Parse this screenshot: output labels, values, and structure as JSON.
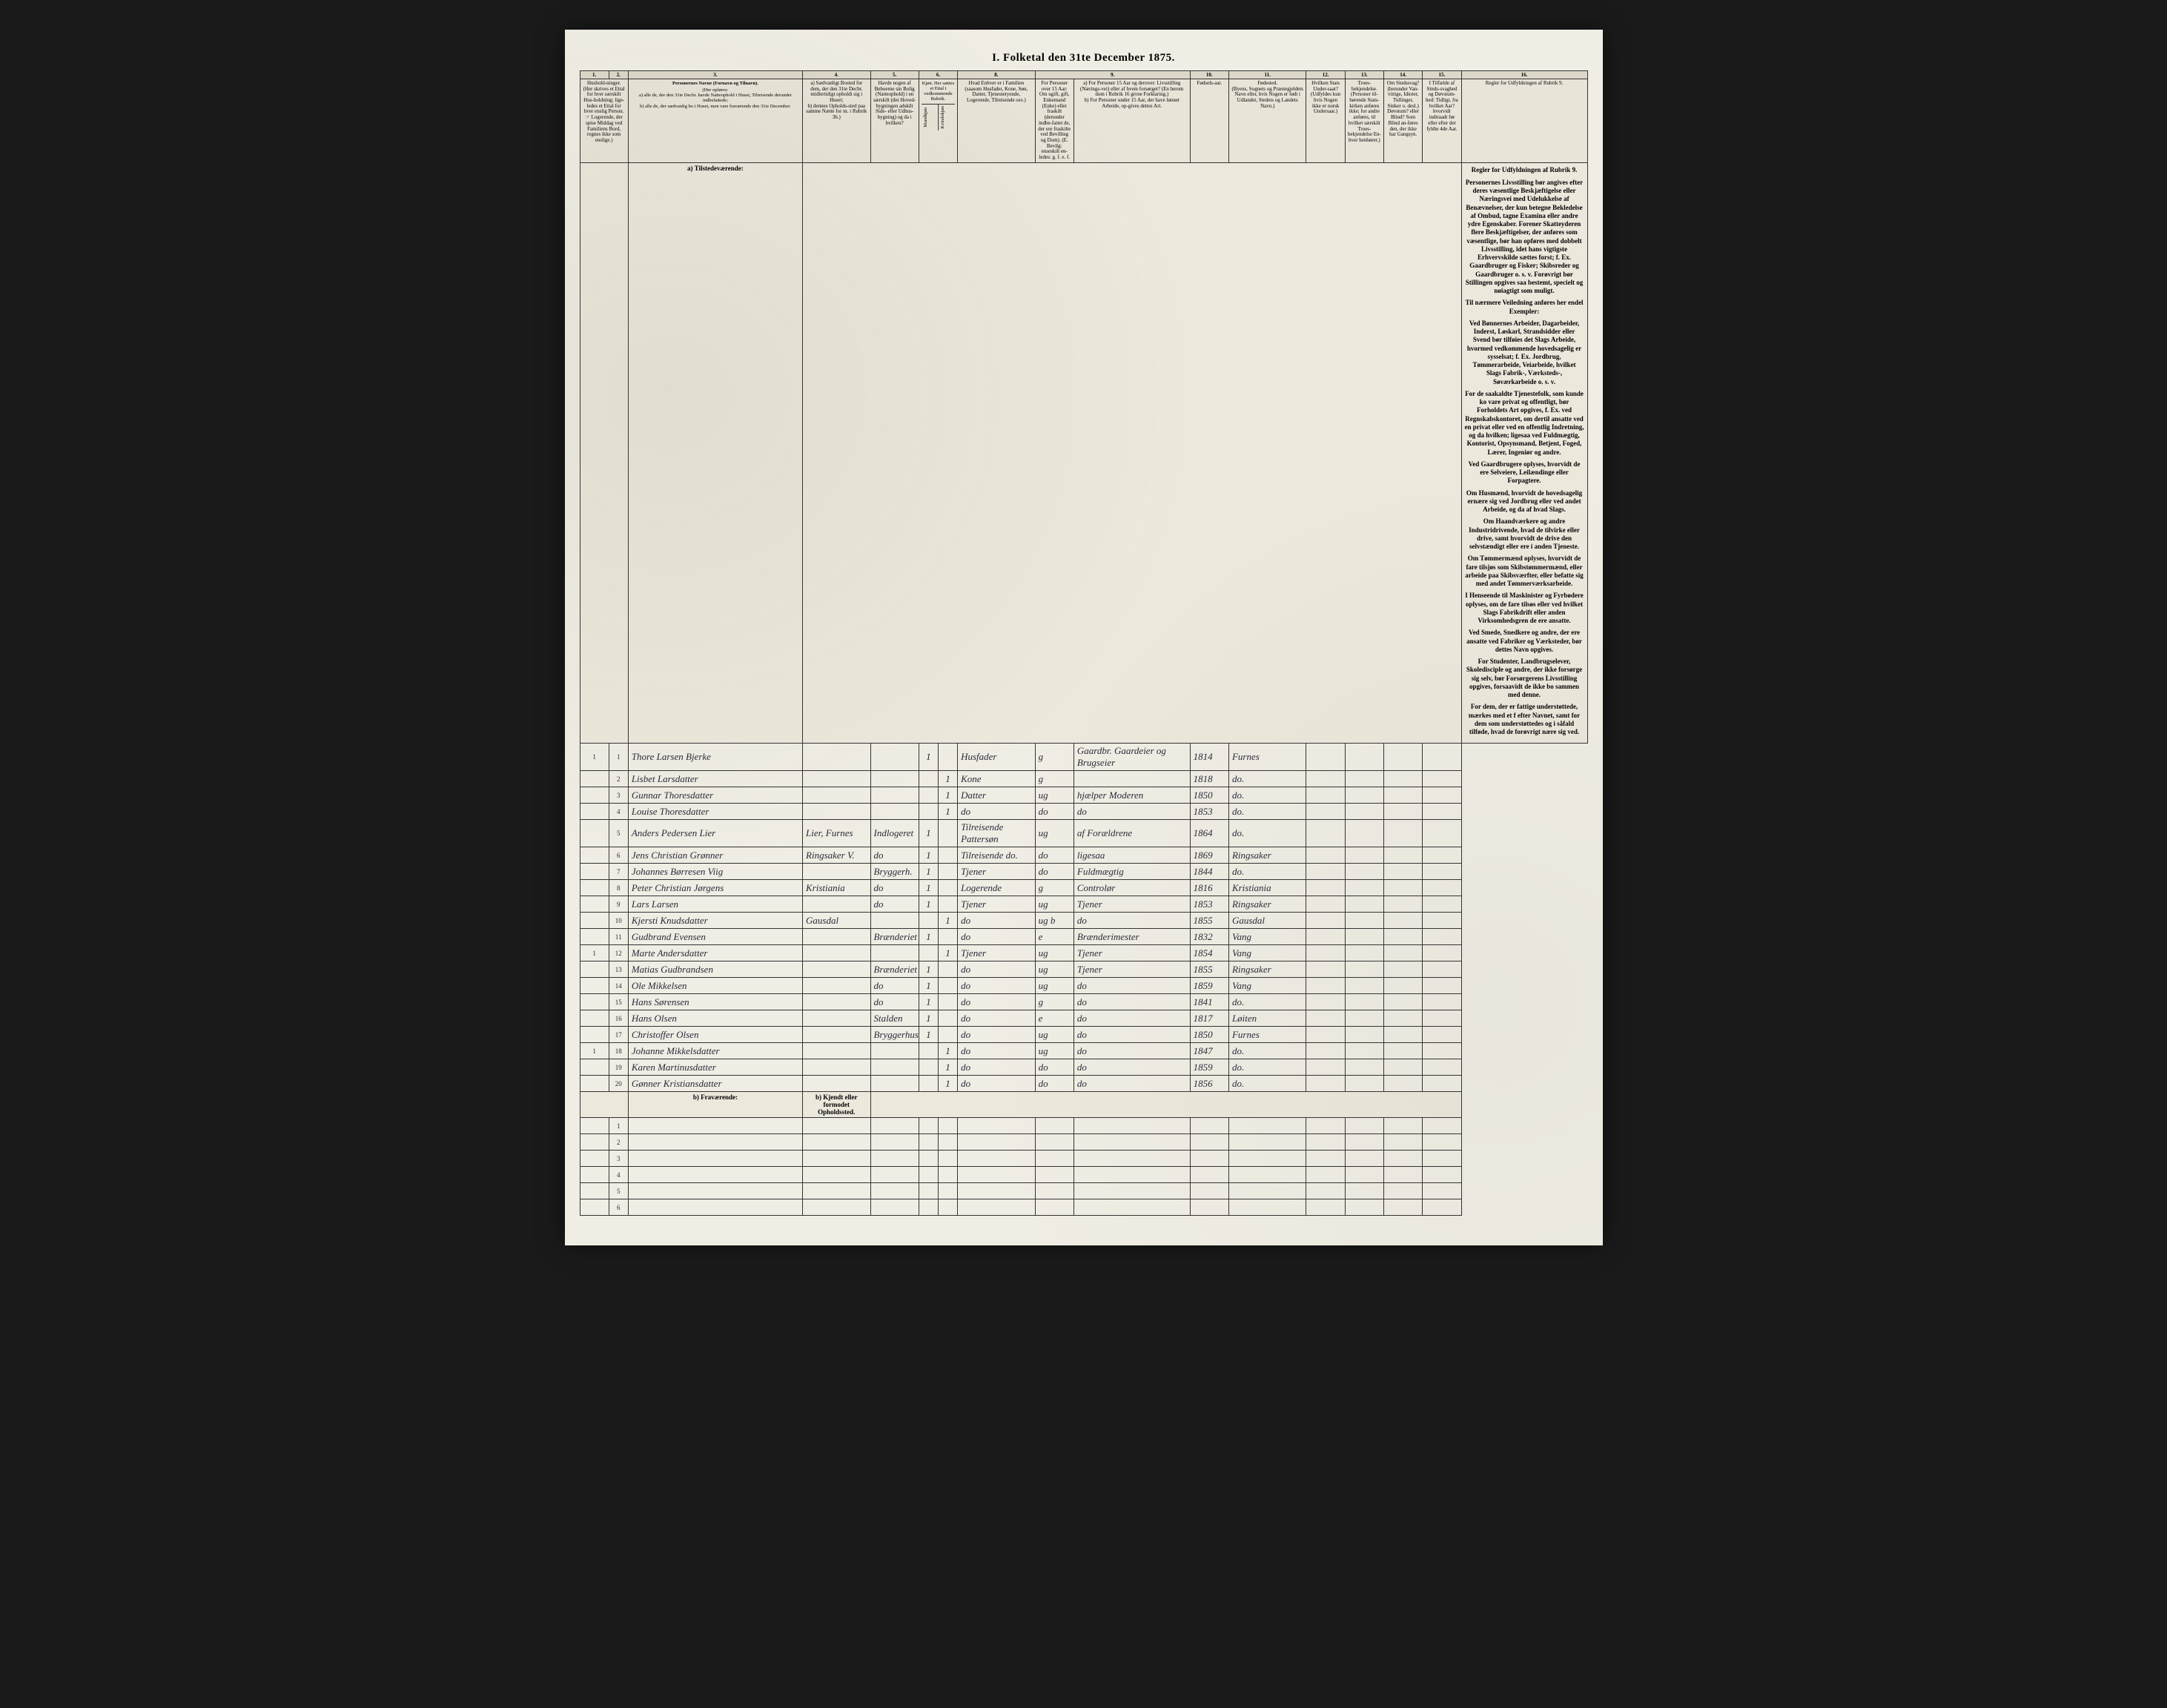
{
  "title": "I. Folketal den 31te December 1875.",
  "column_numbers": [
    "1.",
    "2.",
    "3.",
    "4.",
    "5.",
    "6.",
    "7.",
    "8.",
    "9.",
    "10.",
    "11.",
    "12.",
    "13.",
    "14.",
    "15.",
    "16."
  ],
  "headers": {
    "c1": "Hushold-ninger. (Her skrives et Ettal for hver særskilt Hus-holdning; lige-ledes et Ettal for hver enslig Person. ☞ Logerende, der spise Middag ved Familiens Bord, regnes ikke som enslige.)",
    "c3_title": "Personernes Navne (Fornavn og Tilnavn).",
    "c3_sub": "(Her opføres:\na) alle de, der den 31te Decbr. havde Natteophold i Huset, Tilreisende derunder indbefattede;\nb) alle de, der sædvanlig bo i Huset, men vare fraværende den 31te December.",
    "c4": "a) Sædvanligt Bosted for dem, der den 31te Decbr. midlertidigt opholdt sig i Huset;\nb) dennes Opholds-sted paa samme Nætte for m. i Rubrik 3b.)",
    "c5": "Havde nogen af Beboerne sin Bolig (Natteophold) i en særskilt (det Hoved-bygningen adskilt Side- eller Udhus-bygning) og da i hvilken?",
    "c67": "Kjøn. Her sættes et Ettal i vedkommende Rubrik.",
    "c6": "Mandkjøn",
    "c7": "Kvindekjøn",
    "c8": "Hvad Enhver er i Familien (saasom Husfader, Kone, Søn, Datter, Tjenestetyende, Logerende, Tilreisende osv.)",
    "c9a": "For Personer over 15 Aar: Om ugift, gift, Enkemand (Enke) eller fraskilt (derunder indbe-fattet de, der ere fraskilte ved Bevilling og Dom). (E. Bevilg: enseskilt en-ledes: g. f. e. f.",
    "c9b": "a) For Personer 15 Aar og derover: Livsstilling (Nærings-vei) eller af hvem forsørget? (En herom dom i Rubrik 16 givne Forklaring.)\nb) For Personer under 15 Aar, der have lønnet Arbeide, op-gives dettes Art.",
    "c10": "Fødsels-aar.",
    "c11": "Fødested.\n(Byens, Sognets og Præstegjeldets Navn eller, hvis Nogen er født i Udlandet, Stedets og Landets Navn.)",
    "c12": "Hvilken Stats Under-saat?\n(Udfyldes kun hvis Nogen ikke er norsk Undersaat.)",
    "c13": "Troes-bekjendelse. (Personer til-hørende Stats-kirken anføres ikke; for andre anføres, til hvilket særskilt Troes-bekjendelse En-hver henhører.)",
    "c14": "Om Sindssvag? (herunder Van-vittige, Idioter, Tullinger, Sinker o. desl.) Døvstum? eller Blind? Som Blind an-føres den, der ikke har Gangsyn.",
    "c15": "I Tilfælde af Sinds-svaghed og Døvstum-hed: Tidligt, fra hvilket Aar? hvorvidt indtraadt før eller efter det fyldte 4de Aar.",
    "c16": "Regler for Udfyldningen af Rubrik 9."
  },
  "section_a": "a) Tilstedeværende:",
  "section_b": "b) Fraværende:",
  "section_b_col4": "b) Kjendt eller formodet Opholdssted.",
  "rows": [
    {
      "h": "1",
      "n": "1",
      "name": "Thore Larsen Bjerke",
      "c4": "",
      "c5": "",
      "c6": "1",
      "c7": "",
      "c8": "Husfader",
      "c9a": "g",
      "c9b": "Gaardbr. Gaardeier og Brugseier",
      "c10": "1814",
      "c11": "Furnes"
    },
    {
      "h": "",
      "n": "2",
      "name": "Lisbet Larsdatter",
      "c4": "",
      "c5": "",
      "c6": "",
      "c7": "1",
      "c8": "Kone",
      "c9a": "g",
      "c9b": "",
      "c10": "1818",
      "c11": "do."
    },
    {
      "h": "",
      "n": "3",
      "name": "Gunnar Thoresdatter",
      "c4": "",
      "c5": "",
      "c6": "",
      "c7": "1",
      "c8": "Datter",
      "c9a": "ug",
      "c9b": "hjælper Moderen",
      "c10": "1850",
      "c11": "do."
    },
    {
      "h": "",
      "n": "4",
      "name": "Louise Thoresdatter",
      "c4": "",
      "c5": "",
      "c6": "",
      "c7": "1",
      "c8": "do",
      "c9a": "do",
      "c9b": "do",
      "c10": "1853",
      "c11": "do."
    },
    {
      "h": "",
      "n": "5",
      "name": "Anders Pedersen Lier",
      "c4": "Lier, Furnes",
      "c5": "Indlogeret",
      "c6": "1",
      "c7": "",
      "c8": "Tilreisende Pattersøn",
      "c9a": "ug",
      "c9b": "af Forældrene",
      "c10": "1864",
      "c11": "do."
    },
    {
      "h": "",
      "n": "6",
      "name": "Jens Christian Grønner",
      "c4": "Ringsaker V.",
      "c5": "do",
      "c6": "1",
      "c7": "",
      "c8": "Tilreisende do.",
      "c9a": "do",
      "c9b": "ligesaa",
      "c10": "1869",
      "c11": "Ringsaker"
    },
    {
      "h": "",
      "n": "7",
      "name": "Johannes Børresen Viig",
      "c4": "",
      "c5": "Bryggerh.",
      "c6": "1",
      "c7": "",
      "c8": "Tjener",
      "c9a": "do",
      "c9b": "Fuldmægtig",
      "c10": "1844",
      "c11": "do."
    },
    {
      "h": "",
      "n": "8",
      "name": "Peter Christian Jørgens",
      "c4": "Kristiania",
      "c5": "do",
      "c6": "1",
      "c7": "",
      "c8": "Logerende",
      "c9a": "g",
      "c9b": "Controlør",
      "c10": "1816",
      "c11": "Kristiania"
    },
    {
      "h": "",
      "n": "9",
      "name": "Lars Larsen",
      "c4": "",
      "c5": "do",
      "c6": "1",
      "c7": "",
      "c8": "Tjener",
      "c9a": "ug",
      "c9b": "Tjener",
      "c10": "1853",
      "c11": "Ringsaker"
    },
    {
      "h": "",
      "n": "10",
      "name": "Kjersti Knudsdatter",
      "c4": "Gausdal",
      "c5": "",
      "c6": "",
      "c7": "1",
      "c8": "do",
      "c9a": "ug b",
      "c9b": "do",
      "c10": "1855",
      "c11": "Gausdal"
    },
    {
      "h": "",
      "n": "11",
      "name": "Gudbrand Evensen",
      "c4": "",
      "c5": "Brænderiet",
      "c6": "1",
      "c7": "",
      "c8": "do",
      "c9a": "e",
      "c9b": "Brænderimester",
      "c10": "1832",
      "c11": "Vang"
    },
    {
      "h": "1",
      "n": "12",
      "name": "Marte Andersdatter",
      "c4": "",
      "c5": "",
      "c6": "",
      "c7": "1",
      "c8": "Tjener",
      "c9a": "ug",
      "c9b": "Tjener",
      "c10": "1854",
      "c11": "Vang"
    },
    {
      "h": "",
      "n": "13",
      "name": "Matias Gudbrandsen",
      "c4": "",
      "c5": "Brænderiet",
      "c6": "1",
      "c7": "",
      "c8": "do",
      "c9a": "ug",
      "c9b": "Tjener",
      "c10": "1855",
      "c11": "Ringsaker"
    },
    {
      "h": "",
      "n": "14",
      "name": "Ole Mikkelsen",
      "c4": "",
      "c5": "do",
      "c6": "1",
      "c7": "",
      "c8": "do",
      "c9a": "ug",
      "c9b": "do",
      "c10": "1859",
      "c11": "Vang"
    },
    {
      "h": "",
      "n": "15",
      "name": "Hans Sørensen",
      "c4": "",
      "c5": "do",
      "c6": "1",
      "c7": "",
      "c8": "do",
      "c9a": "g",
      "c9b": "do",
      "c10": "1841",
      "c11": "do."
    },
    {
      "h": "",
      "n": "16",
      "name": "Hans Olsen",
      "c4": "",
      "c5": "Stalden",
      "c6": "1",
      "c7": "",
      "c8": "do",
      "c9a": "e",
      "c9b": "do",
      "c10": "1817",
      "c11": "Løiten"
    },
    {
      "h": "",
      "n": "17",
      "name": "Christoffer Olsen",
      "c4": "",
      "c5": "Bryggerhus",
      "c6": "1",
      "c7": "",
      "c8": "do",
      "c9a": "ug",
      "c9b": "do",
      "c10": "1850",
      "c11": "Furnes"
    },
    {
      "h": "1",
      "n": "18",
      "name": "Johanne Mikkelsdatter",
      "c4": "",
      "c5": "",
      "c6": "",
      "c7": "1",
      "c8": "do",
      "c9a": "ug",
      "c9b": "do",
      "c10": "1847",
      "c11": "do."
    },
    {
      "h": "",
      "n": "19",
      "name": "Karen Martinusdatter",
      "c4": "",
      "c5": "",
      "c6": "",
      "c7": "1",
      "c8": "do",
      "c9a": "do",
      "c9b": "do",
      "c10": "1859",
      "c11": "do."
    },
    {
      "h": "",
      "n": "20",
      "name": "Gønner Kristiansdatter",
      "c4": "",
      "c5": "",
      "c6": "",
      "c7": "1",
      "c8": "do",
      "c9a": "do",
      "c9b": "do",
      "c10": "1856",
      "c11": "do."
    }
  ],
  "sidebar": {
    "title": "Regler for Udfyldningen af Rubrik 9.",
    "p1": "Personernes Livsstilling bør angives efter deres væsentlige Beskjæftigelse eller Næringsvei med Udelukkelse af Benævnelser, der kun betegne Bekledelse af Ombud, tagne Examina eller andre ydre Egenskaber. Forener Skatteyderen flere Beskjæftigelser, der anføres som væsentlige, bør han opføres med dobbelt Livsstilling, idet hans vigtigste Erhvervskilde sættes forst; f. Ex. Gaardbruger og Fisker; Skibsreder og Gaardbruger o. s. v. Forøvrigt bør Stillingen opgives saa bestemt, specielt og nøiagtigt som muligt.",
    "p2": "Til nærmere Veiledning anføres her endel Exempler:",
    "p3": "Ved Bønnernes Arbeider, Dagarbeider, Inderst, Løskarl, Strandsidder eller Svend bør tilføies det Slags Arbeide, hvormed vedkommende hovedsagelig er sysselsat; f. Ex. Jordbrug, Tømmerarbeide, Veiarbeide, hvilket Slags Fabrik-, Værksteds-, Søværkarbeide o. s. v.",
    "p4": "For de saakaldte Tjenestefolk, som kunde ko vare privat og offentligt, bør Forholdets Art opgives, f. Ex. ved Regnskabskontoret, om dertil ansatte ved en privat eller ved en offentlig Indretning, og da hvilken; ligesaa ved Fuldmægtig, Kontorist, Opsynsmand, Betjent, Foged, Lærer, Ingeniør og andre.",
    "p5": "Ved Gaardbrugere oplyses, hvorvidt de ere Selveiere, Leilændinge eller Forpagtere.",
    "p6": "Om Husmænd, hvorvidt de hovedsagelig ernære sig ved Jordbrug eller ved andet Arbeide, og da af hvad Slags.",
    "p7": "Om Haandværkere og andre Industridrivende, hvad de tilvirke eller drive, samt hvorvidt de drive den selvstændigt eller ere i anden Tjeneste.",
    "p8": "Om Tømmermænd oplyses, hvorvidt de fare tilsjøs som Skibstømmermænd, eller arbeide paa Skibsværfter, eller befatte sig med andet Tømmerværksarbeide.",
    "p9": "I Henseende til Maskinister og Fyrbødere oplyses, om de fare tilsøs eller ved hvilket Slags Fabrikdrift eller anden Virksomhedsgren de ere ansatte.",
    "p10": "Ved Smede, Snedkere og andre, der ere ansatte ved Fabriker og Værksteder, bør dettes Navn opgives.",
    "p11": "For Studenter, Landbrugselever, Skoledisciple og andre, der ikke forsørge sig selv, bør Forsørgerens Livsstilling opgives, forsaavidt de ikke bo sammen med denne.",
    "p12": "For dem, der er fattige understøttede, mærkes med et f efter Navnet, samt for dem som understøttedes og i såfald tilføde, hvad de forøvrigt nære sig ved."
  },
  "blank_count": 6
}
